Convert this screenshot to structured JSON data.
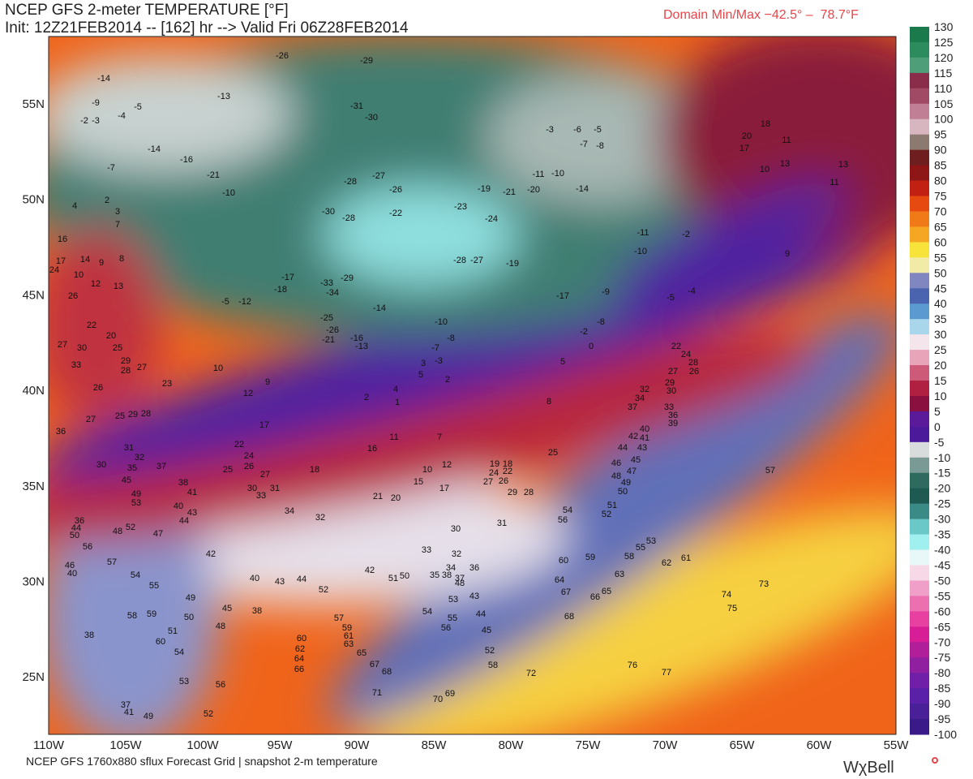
{
  "header": {
    "title": "NCEP GFS 2-meter TEMPERATURE [°F]",
    "init": "Init: 12Z21FEB2014 -- [162] hr --> Valid Fri 06Z28FEB2014",
    "minmax": "Domain Min/Max −42.5° –  78.7°F"
  },
  "footer": {
    "source": "NCEP GFS 1760x880 sflux Forecast Grid | snapshot 2-m temperature",
    "logo": "WχBell"
  },
  "lat_labels": [
    "55N",
    "50N",
    "45N",
    "40N",
    "35N",
    "30N",
    "25N"
  ],
  "lon_labels": [
    "110W",
    "105W",
    "100W",
    "95W",
    "90W",
    "85W",
    "80W",
    "75W",
    "70W",
    "65W",
    "60W",
    "55W"
  ],
  "colorbar": {
    "ticks": [
      130,
      125,
      120,
      115,
      110,
      105,
      100,
      95,
      90,
      85,
      80,
      75,
      70,
      65,
      60,
      55,
      50,
      45,
      40,
      35,
      30,
      25,
      20,
      15,
      10,
      5,
      0,
      -5,
      -10,
      -15,
      -20,
      -25,
      -30,
      -35,
      -40,
      -45,
      -50,
      -55,
      -60,
      -65,
      -70,
      -75,
      -80,
      -85,
      -90,
      -95,
      -100
    ],
    "colors": [
      "#1a7a4c",
      "#2d8c5e",
      "#4f9e7a",
      "#8a2d4a",
      "#a04a66",
      "#c07f95",
      "#d8b6c0",
      "#8c7a70",
      "#6e1e1e",
      "#8e1616",
      "#c22012",
      "#e64a10",
      "#f07a18",
      "#f5a623",
      "#f7e33a",
      "#f2eba8",
      "#7f86c0",
      "#4a64b0",
      "#5a9ad0",
      "#a9d6ea",
      "#f4e4ec",
      "#e8a4b8",
      "#cc5a78",
      "#b02040",
      "#8a1040",
      "#5a1a9a",
      "#4a1a9a",
      "#d8dcdc",
      "#7a9a96",
      "#2e6a5e",
      "#1e5a52",
      "#3a8a86",
      "#6ac8c8",
      "#a0f0f0",
      "#e8f8f8",
      "#f6d8e6",
      "#f0a0c8",
      "#ec70b0",
      "#e840a0",
      "#d81e96",
      "#b01e9a",
      "#9020a0",
      "#7020a8",
      "#5a20a8",
      "#4a2098",
      "#3a1a88"
    ]
  },
  "station_values": [
    -26,
    -29,
    -14,
    -9,
    -2,
    -3,
    -4,
    -5,
    -13,
    -31,
    -30,
    -7,
    -14,
    -16,
    -21,
    -10,
    -28,
    -27,
    -26,
    -30,
    -28,
    -22,
    -23,
    -24,
    -19,
    -21,
    -20,
    -11,
    -10,
    -14,
    -3,
    -6,
    -5,
    -7,
    -8,
    2,
    4,
    3,
    7,
    16,
    14,
    17,
    9,
    8,
    10,
    12,
    13,
    24,
    26,
    -5,
    -12,
    -17,
    -18,
    -33,
    -29,
    -34,
    -25,
    -26,
    -21,
    -16,
    -13,
    -14,
    -10,
    -8,
    -7,
    -3,
    -28,
    -27,
    -19,
    -17,
    -11,
    -10,
    -2,
    -5,
    -4,
    -9,
    -8,
    -2,
    0,
    11,
    13,
    9,
    18,
    20,
    17,
    11,
    10,
    13,
    22,
    20,
    25,
    27,
    30,
    29,
    28,
    27,
    33,
    26,
    27,
    25,
    29,
    28,
    23,
    10,
    12,
    17,
    9,
    2,
    4,
    1,
    3,
    5,
    2,
    11,
    7,
    16,
    5,
    8,
    36,
    31,
    32,
    30,
    35,
    37,
    45,
    49,
    53,
    22,
    24,
    26,
    25,
    27,
    18,
    38,
    41,
    30,
    33,
    31,
    34,
    32,
    21,
    20,
    10,
    12,
    15,
    17,
    19,
    18,
    24,
    22,
    27,
    26,
    29,
    28,
    25,
    40,
    43,
    44,
    36,
    44,
    50,
    48,
    52,
    47,
    42,
    56,
    57,
    46,
    40,
    54,
    55,
    40,
    43,
    44,
    52,
    42,
    51,
    50,
    35,
    38,
    37,
    34,
    36,
    48,
    30,
    33,
    32,
    31,
    43,
    53,
    54,
    55,
    56,
    44,
    45,
    52,
    58,
    49,
    50,
    45,
    48,
    38,
    57,
    59,
    61,
    63,
    60,
    62,
    64,
    66,
    65,
    67,
    68,
    71,
    70,
    69,
    58,
    59,
    51,
    60,
    54,
    38,
    53,
    56,
    52,
    37,
    41,
    49,
    54,
    56,
    51,
    52,
    60,
    59,
    58,
    55,
    53,
    62,
    61,
    63,
    64,
    67,
    66,
    65,
    68,
    73,
    74,
    75,
    76,
    77,
    57,
    32,
    34,
    37,
    30,
    29,
    27,
    26,
    28,
    24,
    22,
    33,
    36,
    39,
    40,
    42,
    41,
    44,
    43,
    46,
    45,
    47,
    48,
    49,
    50,
    72
  ]
}
